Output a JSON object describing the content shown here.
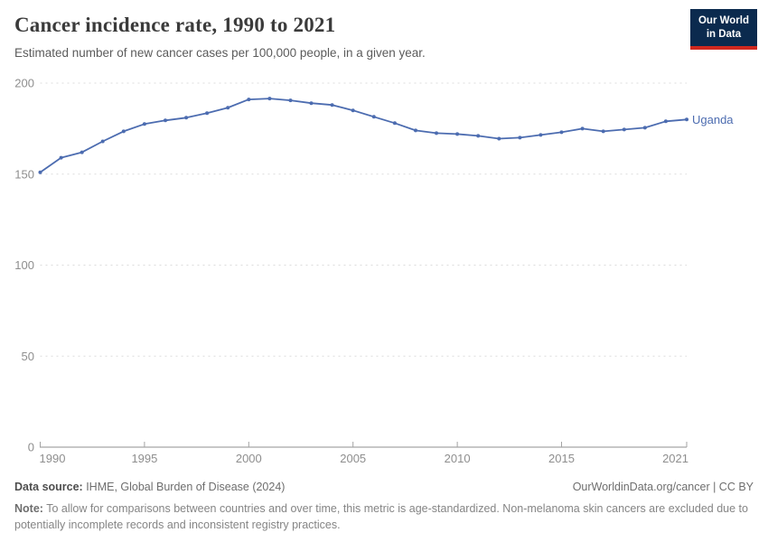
{
  "header": {
    "title": "Cancer incidence rate, 1990 to 2021",
    "subtitle": "Estimated number of new cancer cases per 100,000 people, in a given year.",
    "logo": {
      "line1": "Our World",
      "line2": "in Data",
      "bg_color": "#0B2A4E",
      "accent_color": "#D0281E"
    }
  },
  "chart_data": {
    "type": "line",
    "title": "Cancer incidence rate, 1990 to 2021",
    "xlabel": "",
    "ylabel": "",
    "xlim": [
      1990,
      2021
    ],
    "ylim": [
      0,
      200
    ],
    "y_ticks": [
      0,
      50,
      100,
      150,
      200
    ],
    "x_ticks": [
      1990,
      1995,
      2000,
      2005,
      2010,
      2015,
      2021
    ],
    "grid": "horizontal-dashed",
    "legend_position": "end-of-line label",
    "series": [
      {
        "name": "Uganda",
        "color": "#4C6CB0",
        "x": [
          1990,
          1991,
          1992,
          1993,
          1994,
          1995,
          1996,
          1997,
          1998,
          1999,
          2000,
          2001,
          2002,
          2003,
          2004,
          2005,
          2006,
          2007,
          2008,
          2009,
          2010,
          2011,
          2012,
          2013,
          2014,
          2015,
          2016,
          2017,
          2018,
          2019,
          2020,
          2021
        ],
        "values": [
          151,
          159,
          162,
          168,
          173.5,
          177.5,
          179.5,
          181,
          183.5,
          186.5,
          191,
          191.5,
          190.5,
          189,
          188,
          185,
          181.5,
          178,
          174,
          172.5,
          172,
          171,
          169.5,
          170,
          171.5,
          173,
          175,
          173.5,
          174.5,
          175.5,
          179,
          180
        ]
      }
    ]
  },
  "footer": {
    "datasource_label": "Data source:",
    "datasource_value": " IHME, Global Burden of Disease (2024)",
    "link": "OurWorldinData.org/cancer | CC BY",
    "note_label": "Note:",
    "note_value": " To allow for comparisons between countries and over time, this metric is age-standardized. Non-melanoma skin cancers are excluded due to potentially incomplete records and inconsistent registry practices."
  }
}
